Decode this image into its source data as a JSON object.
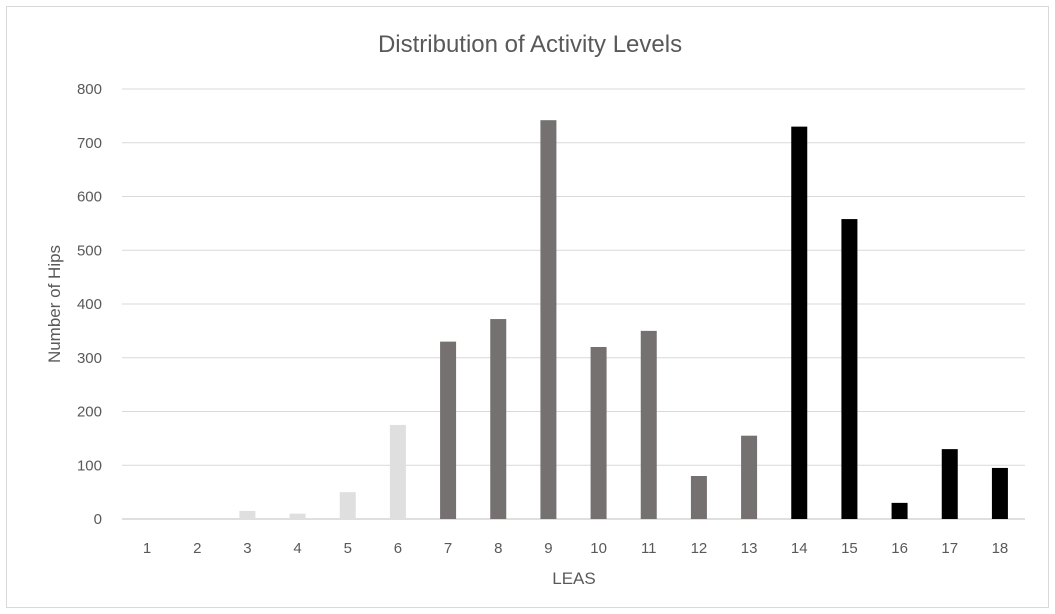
{
  "chart_data": {
    "type": "bar",
    "title": "Distribution of Activity Levels",
    "xlabel": "LEAS",
    "ylabel": "Number of Hips",
    "categories": [
      "1",
      "2",
      "3",
      "4",
      "5",
      "6",
      "7",
      "8",
      "9",
      "10",
      "11",
      "12",
      "13",
      "14",
      "15",
      "16",
      "17",
      "18"
    ],
    "values": [
      0,
      0,
      15,
      10,
      50,
      175,
      330,
      372,
      742,
      320,
      350,
      80,
      155,
      730,
      558,
      30,
      130,
      95
    ],
    "bar_colors": [
      "#e0dfdf",
      "#e0dfdf",
      "#e0dfdf",
      "#e0dfdf",
      "#e0dfdf",
      "#e0dfdf",
      "#767171",
      "#767171",
      "#767171",
      "#767171",
      "#767171",
      "#767171",
      "#767171",
      "#000000",
      "#000000",
      "#000000",
      "#000000",
      "#000000"
    ],
    "ylim": [
      0,
      800
    ],
    "yticks": [
      "0",
      "100",
      "200",
      "300",
      "400",
      "500",
      "600",
      "700",
      "800"
    ],
    "grid": true,
    "legend": "none"
  }
}
